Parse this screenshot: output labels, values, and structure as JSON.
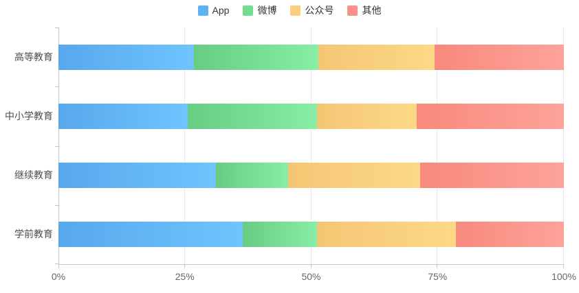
{
  "chart_data": {
    "type": "bar",
    "orientation": "horizontal",
    "stacked": true,
    "unit": "percent",
    "title": "",
    "xlabel": "",
    "ylabel": "",
    "xlim": [
      0,
      100
    ],
    "x_ticks": [
      "0%",
      "25%",
      "50%",
      "75%",
      "100%"
    ],
    "x_tick_values": [
      0,
      25,
      50,
      75,
      100
    ],
    "grid": true,
    "legend_position": "top",
    "categories": [
      "高等教育",
      "中小学教育",
      "继续教育",
      "学前教育"
    ],
    "series": [
      {
        "name": "App",
        "legend_color": "#5cb3f0",
        "gradient_start": "#58a8ec",
        "gradient_end": "#6fc4fe",
        "values": [
          26.8,
          25.6,
          31.2,
          36.5
        ]
      },
      {
        "name": "微博",
        "legend_color": "#72dd8e",
        "gradient_start": "#68cd83",
        "gradient_end": "#88eda5",
        "values": [
          24.6,
          25.5,
          14.3,
          14.6
        ]
      },
      {
        "name": "公众号",
        "legend_color": "#f8cf7d",
        "gradient_start": "#f4c674",
        "gradient_end": "#fcd987",
        "values": [
          23.0,
          19.8,
          26.0,
          27.5
        ]
      },
      {
        "name": "其他",
        "legend_color": "#f9928a",
        "gradient_start": "#f8897d",
        "gradient_end": "#fda39a",
        "values": [
          25.6,
          29.1,
          28.5,
          21.4
        ]
      }
    ]
  },
  "colors": {
    "axis_line": "#c2c6cc",
    "grid_line": "#e9e9ef",
    "x_label_text": "#666666",
    "y_label_text": "#4d4d4d",
    "legend_text": "#333333",
    "background": "#ffffff"
  }
}
